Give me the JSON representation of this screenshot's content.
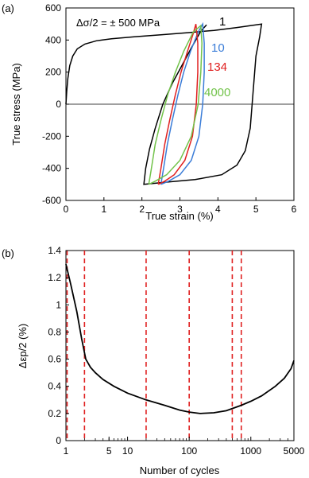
{
  "chart_data": [
    {
      "panel_label": "(a)",
      "type": "line",
      "xlabel": "True strain (%)",
      "ylabel": "True stress (MPa)",
      "xlim": [
        0,
        6
      ],
      "ylim": [
        -600,
        600
      ],
      "xticks": [
        "0",
        "1",
        "2",
        "3",
        "4",
        "5",
        "6"
      ],
      "yticks": [
        "600",
        "400",
        "200",
        "0",
        "-200",
        "-400",
        "-600"
      ],
      "annotation": "Δσ/2 = ± 500 MPa",
      "zero_line": true,
      "series": [
        {
          "name": "1",
          "color": "#000000",
          "points": [
            [
              0.0,
              0
            ],
            [
              0.02,
              80
            ],
            [
              0.05,
              160
            ],
            [
              0.1,
              240
            ],
            [
              0.18,
              300
            ],
            [
              0.3,
              345
            ],
            [
              0.5,
              375
            ],
            [
              0.8,
              395
            ],
            [
              1.2,
              408
            ],
            [
              1.8,
              420
            ],
            [
              2.5,
              433
            ],
            [
              3.2,
              446
            ],
            [
              3.9,
              460
            ],
            [
              4.5,
              478
            ],
            [
              5.15,
              500
            ],
            [
              5.1,
              420
            ],
            [
              5.0,
              300
            ],
            [
              4.95,
              150
            ],
            [
              4.9,
              0
            ],
            [
              4.85,
              -150
            ],
            [
              4.72,
              -290
            ],
            [
              4.5,
              -380
            ],
            [
              4.1,
              -440
            ],
            [
              3.4,
              -470
            ],
            [
              2.7,
              -485
            ],
            [
              2.05,
              -500
            ],
            [
              2.1,
              -400
            ],
            [
              2.2,
              -280
            ],
            [
              2.35,
              -150
            ],
            [
              2.55,
              0
            ],
            [
              2.8,
              130
            ],
            [
              3.05,
              240
            ],
            [
              3.3,
              350
            ],
            [
              3.55,
              455
            ],
            [
              3.7,
              495
            ]
          ]
        },
        {
          "name": "10",
          "color": "#3b7dd8",
          "points": [
            [
              2.5,
              -500
            ],
            [
              2.57,
              -400
            ],
            [
              2.67,
              -250
            ],
            [
              2.8,
              -100
            ],
            [
              2.95,
              60
            ],
            [
              3.1,
              200
            ],
            [
              3.28,
              330
            ],
            [
              3.48,
              450
            ],
            [
              3.6,
              500
            ],
            [
              3.64,
              380
            ],
            [
              3.64,
              200
            ],
            [
              3.6,
              0
            ],
            [
              3.5,
              -200
            ],
            [
              3.3,
              -350
            ],
            [
              3.0,
              -440
            ],
            [
              2.7,
              -480
            ],
            [
              2.5,
              -500
            ]
          ]
        },
        {
          "name": "134",
          "color": "#e02020",
          "points": [
            [
              2.43,
              -500
            ],
            [
              2.5,
              -400
            ],
            [
              2.6,
              -250
            ],
            [
              2.73,
              -100
            ],
            [
              2.88,
              60
            ],
            [
              3.03,
              200
            ],
            [
              3.2,
              330
            ],
            [
              3.35,
              440
            ],
            [
              3.42,
              500
            ],
            [
              3.47,
              380
            ],
            [
              3.47,
              200
            ],
            [
              3.43,
              0
            ],
            [
              3.33,
              -200
            ],
            [
              3.13,
              -350
            ],
            [
              2.85,
              -440
            ],
            [
              2.6,
              -480
            ],
            [
              2.43,
              -500
            ]
          ]
        },
        {
          "name": "4000",
          "color": "#72c34a",
          "points": [
            [
              2.18,
              -500
            ],
            [
              2.25,
              -400
            ],
            [
              2.35,
              -250
            ],
            [
              2.5,
              -100
            ],
            [
              2.68,
              60
            ],
            [
              2.88,
              200
            ],
            [
              3.1,
              330
            ],
            [
              3.35,
              450
            ],
            [
              3.55,
              490
            ],
            [
              3.58,
              380
            ],
            [
              3.55,
              200
            ],
            [
              3.48,
              0
            ],
            [
              3.3,
              -200
            ],
            [
              3.0,
              -350
            ],
            [
              2.65,
              -440
            ],
            [
              2.35,
              -480
            ],
            [
              2.18,
              -500
            ]
          ]
        }
      ]
    },
    {
      "panel_label": "(b)",
      "type": "line",
      "xlabel": "Number of cycles",
      "ylabel": "Δεp/2 (%)",
      "xscale": "log",
      "xlim": [
        1,
        5000
      ],
      "ylim": [
        0,
        1.4
      ],
      "xticks": [
        "1",
        "5",
        "10",
        "100",
        "1000",
        "5000"
      ],
      "yticks": [
        "1.4",
        "1.2",
        "1",
        "0.8",
        "0.6",
        "0.4",
        "0.2",
        "0"
      ],
      "series": [
        {
          "color": "#000000",
          "points": [
            [
              1,
              1.3
            ],
            [
              1.2,
              1.15
            ],
            [
              1.5,
              0.95
            ],
            [
              1.8,
              0.75
            ],
            [
              2.1,
              0.6
            ],
            [
              2.5,
              0.54
            ],
            [
              3,
              0.5
            ],
            [
              4,
              0.45
            ],
            [
              6,
              0.4
            ],
            [
              10,
              0.35
            ],
            [
              20,
              0.3
            ],
            [
              40,
              0.26
            ],
            [
              70,
              0.225
            ],
            [
              100,
              0.21
            ],
            [
              150,
              0.2
            ],
            [
              250,
              0.205
            ],
            [
              400,
              0.22
            ],
            [
              700,
              0.26
            ],
            [
              1000,
              0.29
            ],
            [
              1500,
              0.33
            ],
            [
              2500,
              0.4
            ],
            [
              3500,
              0.46
            ],
            [
              4500,
              0.53
            ],
            [
              5000,
              0.59
            ]
          ]
        }
      ],
      "vertical_markers": {
        "color": "#e02020",
        "style": "dashed",
        "x": [
          1,
          2,
          20,
          100,
          500,
          700
        ]
      }
    }
  ]
}
